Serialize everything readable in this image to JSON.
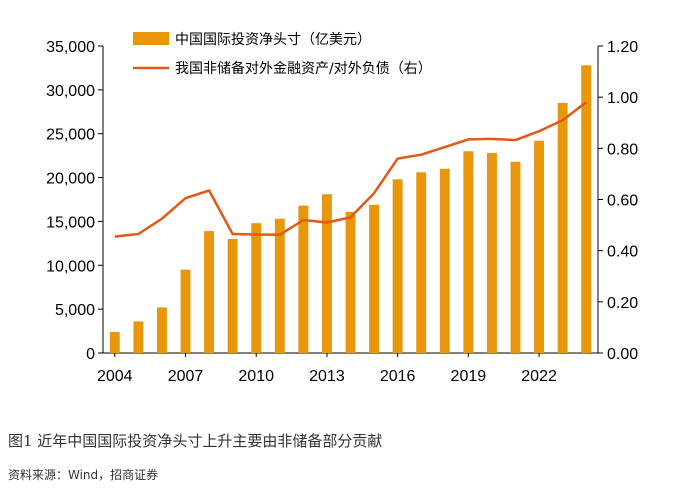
{
  "chart_data": {
    "type": "bar+line",
    "title": "",
    "categories": [
      "2004",
      "2005",
      "2006",
      "2007",
      "2008",
      "2009",
      "2010",
      "2011",
      "2012",
      "2013",
      "2014",
      "2015",
      "2016",
      "2017",
      "2018",
      "2019",
      "2020",
      "2021",
      "2022",
      "2023",
      "2024"
    ],
    "x_tick_labels": [
      "2004",
      "2007",
      "2010",
      "2013",
      "2016",
      "2019",
      "2022"
    ],
    "series": [
      {
        "name": "中国国际投资净头寸（亿美元）",
        "type": "bar",
        "axis": "left",
        "color": "#E8960A",
        "values": [
          2400,
          3600,
          5200,
          9500,
          13900,
          13000,
          14800,
          15300,
          16800,
          18100,
          16100,
          16900,
          19800,
          20600,
          21000,
          23000,
          22800,
          21800,
          24200,
          28500,
          32800
        ]
      },
      {
        "name": "我国非储备对外金融资产/对外负债（右）",
        "type": "line",
        "axis": "right",
        "color": "#E05A13",
        "values": [
          0.455,
          0.465,
          0.525,
          0.605,
          0.635,
          0.465,
          0.463,
          0.462,
          0.52,
          0.51,
          0.53,
          0.625,
          0.76,
          0.775,
          0.805,
          0.835,
          0.837,
          0.832,
          0.867,
          0.91,
          0.98
        ]
      }
    ],
    "y_left": {
      "min": 0,
      "max": 35000,
      "ticks": [
        "0",
        "5,000",
        "10,000",
        "15,000",
        "20,000",
        "25,000",
        "30,000",
        "35,000"
      ]
    },
    "y_right": {
      "min": 0,
      "max": 1.2,
      "ticks": [
        "0.00",
        "0.20",
        "0.40",
        "0.60",
        "0.80",
        "1.00",
        "1.20"
      ]
    },
    "legend_position": "top-center"
  },
  "caption": "图1 近年中国国际投资净头寸上升主要由非储备部分贡献",
  "source": "资料来源：Wind，招商证券"
}
